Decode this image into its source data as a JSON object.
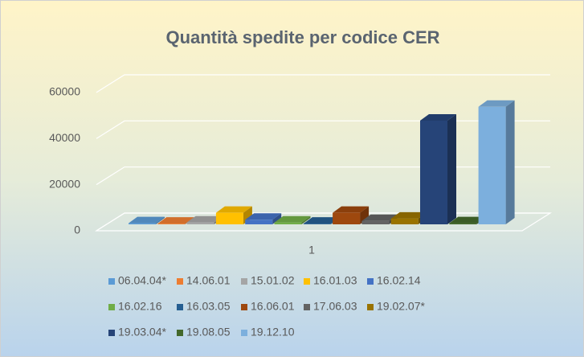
{
  "chart_data": {
    "type": "bar3d",
    "title": "Quantità spedite per codice CER",
    "categories": [
      "1"
    ],
    "ylim": [
      0,
      60000
    ],
    "yticks": [
      0,
      20000,
      40000,
      60000
    ],
    "grid": true,
    "legend": "bottom",
    "series": [
      {
        "name": "06.04.04*",
        "color": "#5b9bd5",
        "values": [
          500
        ]
      },
      {
        "name": "14.06.01",
        "color": "#ed7d31",
        "values": [
          300
        ]
      },
      {
        "name": "15.01.02",
        "color": "#a5a5a5",
        "values": [
          800
        ]
      },
      {
        "name": "16.01.03",
        "color": "#ffc000",
        "values": [
          5000
        ]
      },
      {
        "name": "16.02.14",
        "color": "#4472c4",
        "values": [
          2000
        ]
      },
      {
        "name": "16.02.16",
        "color": "#70ad47",
        "values": [
          800
        ]
      },
      {
        "name": "16.03.05",
        "color": "#255e91",
        "values": [
          300
        ]
      },
      {
        "name": "16.06.01",
        "color": "#9e480e",
        "values": [
          5000
        ]
      },
      {
        "name": "17.06.03",
        "color": "#636363",
        "values": [
          1500
        ]
      },
      {
        "name": "19.02.07*",
        "color": "#997300",
        "values": [
          2500
        ]
      },
      {
        "name": "19.03.04*",
        "color": "#264478",
        "values": [
          45000
        ]
      },
      {
        "name": "19.08.05",
        "color": "#43682b",
        "values": [
          500
        ]
      },
      {
        "name": "19.12.10",
        "color": "#7cafdd",
        "values": [
          51000
        ]
      }
    ]
  }
}
